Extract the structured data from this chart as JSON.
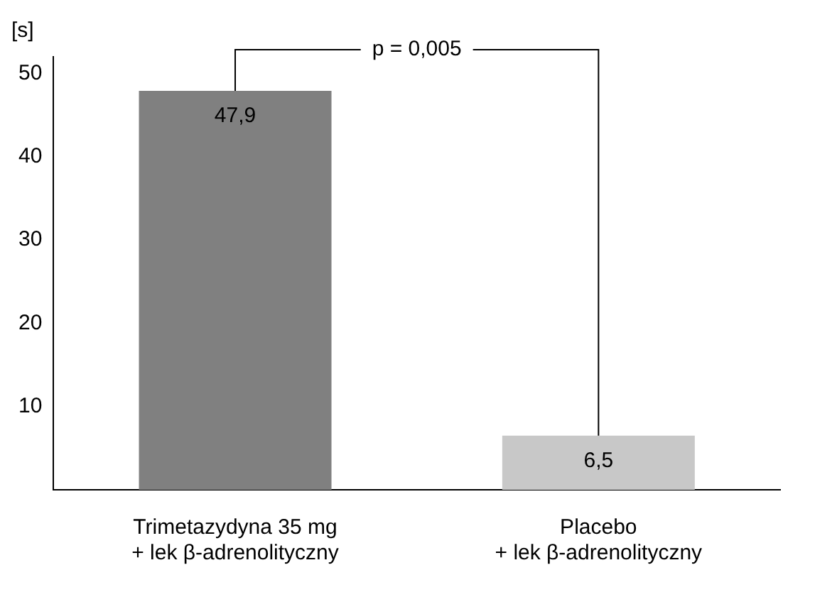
{
  "chart_data": {
    "type": "bar",
    "ylabel": "[s]",
    "categories": [
      "Trimetazydyna 35 mg\n+ lek β-adrenolityczny",
      "Placebo\n+ lek β-adrenolityczny"
    ],
    "values": [
      47.9,
      6.5
    ],
    "colors": [
      "#808080",
      "#c8c8c8"
    ],
    "value_labels": [
      "47,9",
      "6,5"
    ],
    "ylim": [
      0,
      52
    ],
    "yticks": [
      10,
      20,
      30,
      40,
      50
    ],
    "grid": false,
    "legend": false,
    "annotations": [
      {
        "text": "p = 0,005"
      }
    ]
  }
}
